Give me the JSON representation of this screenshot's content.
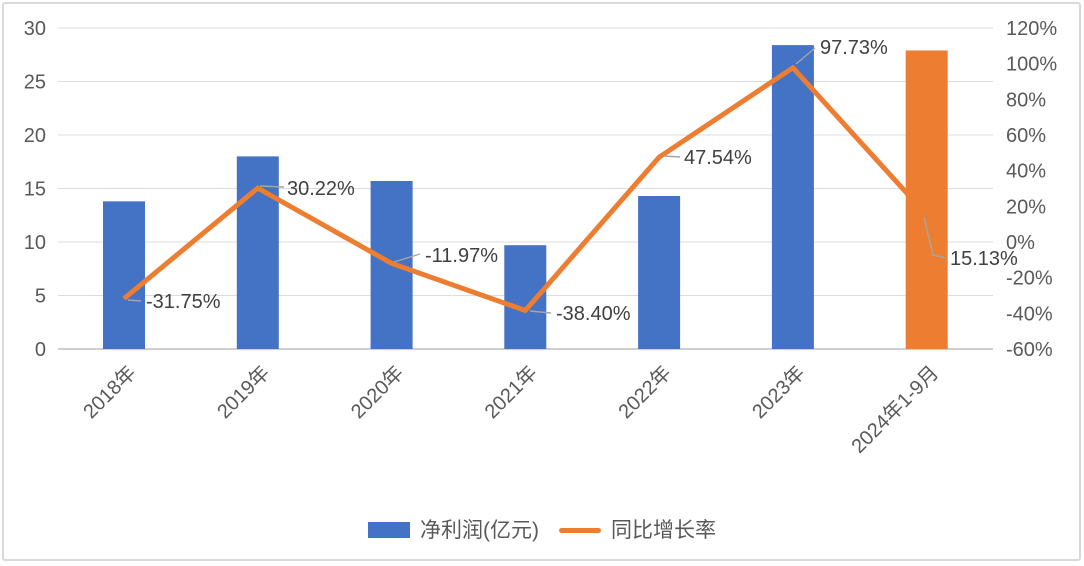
{
  "chart_data": {
    "type": "combo",
    "title": "",
    "categories": [
      "2018年",
      "2019年",
      "2020年",
      "2021年",
      "2022年",
      "2023年",
      "2024年1-9月"
    ],
    "series": [
      {
        "name": "净利润(亿元)",
        "chart_type": "bar",
        "axis": "left",
        "values": [
          13.8,
          18.0,
          15.7,
          9.7,
          14.3,
          28.4,
          27.9
        ],
        "colors": [
          "#4472C4",
          "#4472C4",
          "#4472C4",
          "#4472C4",
          "#4472C4",
          "#4472C4",
          "#ED7D31"
        ]
      },
      {
        "name": "同比增长率",
        "chart_type": "line",
        "axis": "right",
        "color": "#ED7D31",
        "values": [
          -31.75,
          30.22,
          -11.97,
          -38.4,
          47.54,
          97.73,
          15.13
        ],
        "labels": [
          "-31.75%",
          "30.22%",
          "-11.97%",
          "-38.40%",
          "47.54%",
          "97.73%",
          "15.13%"
        ]
      }
    ],
    "left_axis": {
      "min": 0,
      "max": 30,
      "step": 5,
      "ticks": [
        "0",
        "5",
        "10",
        "15",
        "20",
        "25",
        "30"
      ]
    },
    "right_axis": {
      "min": -60,
      "max": 120,
      "step": 20,
      "ticks": [
        "-60%",
        "-40%",
        "-20%",
        "0%",
        "20%",
        "40%",
        "60%",
        "80%",
        "100%",
        "120%"
      ]
    },
    "legend": [
      {
        "label": "净利润(亿元)",
        "color": "#4472C4",
        "swatch": "rect"
      },
      {
        "label": "同比增长率",
        "color": "#ED7D31",
        "swatch": "line"
      }
    ],
    "grid": true,
    "legend_position": "bottom",
    "colors": {
      "bar_blue": "#4472C4",
      "orange": "#ED7D31",
      "grid": "#DCDCDC",
      "axis_line": "#BFBFBF",
      "tick_text": "#595959",
      "label_text": "#404040",
      "leader": "#A6A6A6",
      "frame_border": "#D9D9D9",
      "background": "#FFFFFF"
    }
  }
}
